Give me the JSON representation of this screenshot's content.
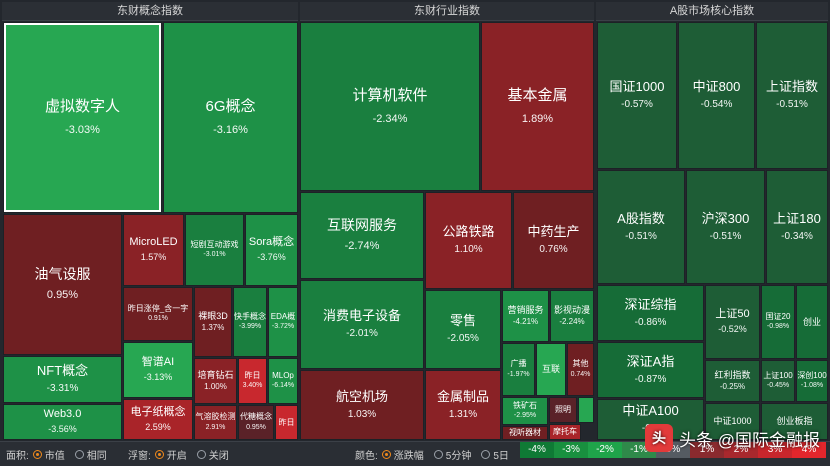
{
  "headers": {
    "concept": "东财概念指数",
    "industry": "东财行业指数",
    "ashare": "A股市场核心指数"
  },
  "tiles": {
    "xunishuzi": {
      "name": "虚拟数字人",
      "pct": "-3.03%"
    },
    "g6": {
      "name": "6G概念",
      "pct": "-3.16%"
    },
    "youqi": {
      "name": "油气设服",
      "pct": "0.95%"
    },
    "microled": {
      "name": "MicroLED",
      "pct": "1.57%"
    },
    "duanju": {
      "name": "短剧互动游戏",
      "pct": "-3.01%"
    },
    "sora": {
      "name": "Sora概念",
      "pct": "-3.76%"
    },
    "zuori_zhangting": {
      "name": "昨日涨停_含一字",
      "pct": "0.91%"
    },
    "luoyan3d": {
      "name": "裸眼3D",
      "pct": "1.37%"
    },
    "kuaishou": {
      "name": "快手概念",
      "pct": "-3.99%"
    },
    "eda": {
      "name": "EDA概",
      "pct": "-3.72%"
    },
    "nft": {
      "name": "NFT概念",
      "pct": "-3.31%"
    },
    "zhipu": {
      "name": "智谱AI",
      "pct": "-3.13%"
    },
    "peiyu": {
      "name": "培育钻石",
      "pct": "1.00%"
    },
    "zuori1": {
      "name": "昨日",
      "pct": "3.40%"
    },
    "mlop": {
      "name": "MLOp",
      "pct": "-6.14%"
    },
    "web3": {
      "name": "Web3.0",
      "pct": "-3.56%"
    },
    "dianzizhi": {
      "name": "电子纸概念",
      "pct": "2.59%"
    },
    "qirong": {
      "name": "气溶胶检测",
      "pct": "2.91%"
    },
    "daijiangpin": {
      "name": "代糖概念",
      "pct": "0.95%"
    },
    "zuori2": {
      "name": "昨日",
      "pct": ""
    },
    "jisuanji": {
      "name": "计算机软件",
      "pct": "-2.34%"
    },
    "jiben": {
      "name": "基本金属",
      "pct": "1.89%"
    },
    "hulianwang": {
      "name": "互联网服务",
      "pct": "-2.74%"
    },
    "gonglu": {
      "name": "公路铁路",
      "pct": "1.10%"
    },
    "zhongyao": {
      "name": "中药生产",
      "pct": "0.76%"
    },
    "xiaofei": {
      "name": "消费电子设备",
      "pct": "-2.01%"
    },
    "lingshou": {
      "name": "零售",
      "pct": "-2.05%"
    },
    "yingxiao": {
      "name": "营销服务",
      "pct": "-4.21%"
    },
    "yingshi": {
      "name": "影视动漫",
      "pct": "-2.24%"
    },
    "guangbo": {
      "name": "广播",
      "pct": "-1.97%"
    },
    "hulian": {
      "name": "互联",
      "pct": ""
    },
    "qita": {
      "name": "其他",
      "pct": "0.74%"
    },
    "hangkong": {
      "name": "航空机场",
      "pct": "1.03%"
    },
    "jinshu": {
      "name": "金属制品",
      "pct": "1.31%"
    },
    "tiekuang": {
      "name": "铁矿石",
      "pct": "-2.95%"
    },
    "zhaoming": {
      "name": "照明",
      "pct": ""
    },
    "shiting": {
      "name": "视听器材",
      "pct": ""
    },
    "motuo": {
      "name": "摩托车",
      "pct": ""
    },
    "zz1000": {
      "name": "国证1000",
      "pct": "-0.57%"
    },
    "zz800": {
      "name": "中证800",
      "pct": "-0.54%"
    },
    "szzs": {
      "name": "上证指数",
      "pct": "-0.51%"
    },
    "ag": {
      "name": "A股指数",
      "pct": "-0.51%"
    },
    "hs300": {
      "name": "沪深300",
      "pct": "-0.51%"
    },
    "sz180": {
      "name": "上证180",
      "pct": "-0.34%"
    },
    "szzz": {
      "name": "深证综指",
      "pct": "-0.86%"
    },
    "sz50": {
      "name": "上证50",
      "pct": "-0.52%"
    },
    "gz20": {
      "name": "国证20",
      "pct": "-0.98%"
    },
    "cyb": {
      "name": "创业",
      "pct": ""
    },
    "szA": {
      "name": "深证A指",
      "pct": "-0.87%"
    },
    "hongli": {
      "name": "红利指数",
      "pct": "-0.25%"
    },
    "sz100": {
      "name": "上证100",
      "pct": "-0.45%"
    },
    "sc100": {
      "name": "深创100",
      "pct": "-1.08%"
    },
    "zzA100": {
      "name": "中证A100",
      "pct": "-0.5"
    },
    "zz1000b": {
      "name": "中证1000",
      "pct": ""
    },
    "cybbz": {
      "name": "创业板指",
      "pct": ""
    }
  },
  "footer": {
    "area_label": "面积:",
    "area_opt1": "市值",
    "area_opt2": "相同",
    "float_label": "浮窗:",
    "float_opt1": "开启",
    "float_opt2": "关闭",
    "color_label": "颜色:",
    "color_opt1": "涨跌幅",
    "color_opt2": "5分钟",
    "color_opt3": "5日",
    "legend": [
      "-4%",
      "-3%",
      "-2%",
      "-1%",
      "0%",
      "1%",
      "2%",
      "3%",
      "4%"
    ]
  },
  "colors": {
    "selected_radio": "#f08a1c",
    "legend": [
      "#0f7a35",
      "#19903f",
      "#1fa44a",
      "#2f8a4a",
      "#555b62",
      "#8a2a2e",
      "#a8282d",
      "#c8262c",
      "#e2262c"
    ]
  },
  "watermark": {
    "icon_text": "头",
    "text": "头条 @国际金融报"
  }
}
